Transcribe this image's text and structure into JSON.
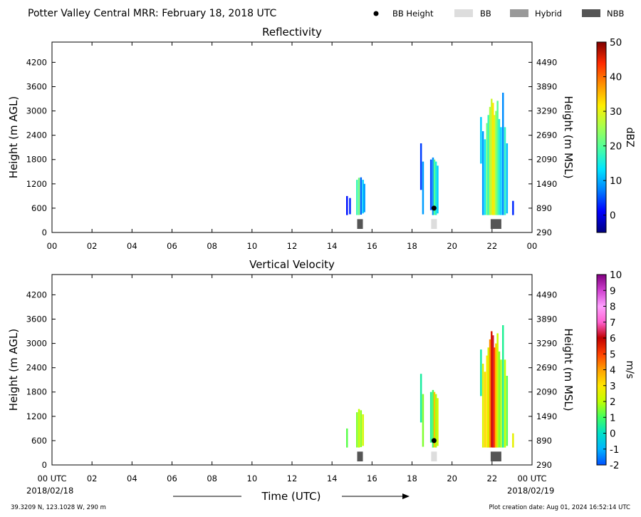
{
  "header": {
    "title": "Potter Valley Central MRR:  February 18, 2018 UTC",
    "legend": [
      {
        "label": "BB Height",
        "kind": "dot",
        "color": "#000000"
      },
      {
        "label": "BB",
        "kind": "rect",
        "color": "#dddddd"
      },
      {
        "label": "Hybrid",
        "kind": "rect",
        "color": "#999999"
      },
      {
        "label": "NBB",
        "kind": "rect",
        "color": "#555555"
      }
    ]
  },
  "footer": {
    "location": "39.3209 N, 123.1028 W, 290 m",
    "creation": "Plot creation date: Aug 01, 2024 16:52:14 UTC",
    "xlabel": "Time (UTC)",
    "start_date": "2018/02/18",
    "end_date": "2018/02/19"
  },
  "chart_data": [
    {
      "type": "heatmap",
      "title": "Reflectivity",
      "ylabel": "Height (m AGL)",
      "ylabel_right": "Height (m MSL)",
      "xlim": [
        0,
        24
      ],
      "ylim": [
        0,
        4700
      ],
      "x_ticks": [
        "00",
        "02",
        "04",
        "06",
        "08",
        "10",
        "12",
        "14",
        "16",
        "18",
        "20",
        "22",
        "00"
      ],
      "y_ticks": [
        0,
        600,
        1200,
        1800,
        2400,
        3000,
        3600,
        4200
      ],
      "y_ticks_right": [
        290,
        890,
        1490,
        2090,
        2690,
        3290,
        3890,
        4490
      ],
      "colorbar": {
        "label": "dBZ",
        "range": [
          -5,
          50
        ],
        "ticks": [
          0,
          10,
          20,
          30,
          40,
          50
        ],
        "colormap": [
          "#00007f",
          "#0000ff",
          "#0080ff",
          "#00e5ff",
          "#4dff9e",
          "#a8ff4d",
          "#ffee00",
          "#ff9100",
          "#ff2a00",
          "#7f0000"
        ]
      },
      "bb_height": [
        {
          "time": 19.1,
          "height": 600
        }
      ],
      "bb_type": [
        {
          "time": 15.4,
          "class": "NBB"
        },
        {
          "time": 19.1,
          "class": "BB"
        },
        {
          "time": 22.2,
          "class": "NBB"
        }
      ],
      "echoes": [
        {
          "t": 14.75,
          "h0": 430,
          "h1": 900,
          "v": 2
        },
        {
          "t": 14.9,
          "h0": 450,
          "h1": 850,
          "v": 3
        },
        {
          "t": 15.25,
          "h0": 430,
          "h1": 1300,
          "v": 18
        },
        {
          "t": 15.35,
          "h0": 430,
          "h1": 1350,
          "v": 22
        },
        {
          "t": 15.45,
          "h0": 440,
          "h1": 1360,
          "v": 6
        },
        {
          "t": 15.55,
          "h0": 470,
          "h1": 1300,
          "v": 12
        },
        {
          "t": 15.62,
          "h0": 500,
          "h1": 1200,
          "v": 9
        },
        {
          "t": 18.45,
          "h0": 1050,
          "h1": 2200,
          "v": 4
        },
        {
          "t": 18.55,
          "h0": 450,
          "h1": 1750,
          "v": 9
        },
        {
          "t": 18.95,
          "h0": 550,
          "h1": 1800,
          "v": 5
        },
        {
          "t": 19.05,
          "h0": 430,
          "h1": 1850,
          "v": 8
        },
        {
          "t": 19.12,
          "h0": 430,
          "h1": 1800,
          "v": 20
        },
        {
          "t": 19.2,
          "h0": 430,
          "h1": 1750,
          "v": 16
        },
        {
          "t": 19.28,
          "h0": 470,
          "h1": 1650,
          "v": 12
        },
        {
          "t": 21.45,
          "h0": 1700,
          "h1": 2850,
          "v": 12
        },
        {
          "t": 21.55,
          "h0": 430,
          "h1": 2500,
          "v": 9
        },
        {
          "t": 21.65,
          "h0": 430,
          "h1": 2300,
          "v": 14
        },
        {
          "t": 21.75,
          "h0": 430,
          "h1": 2700,
          "v": 22
        },
        {
          "t": 21.82,
          "h0": 430,
          "h1": 2900,
          "v": 18
        },
        {
          "t": 21.9,
          "h0": 430,
          "h1": 3100,
          "v": 26
        },
        {
          "t": 21.98,
          "h0": 430,
          "h1": 3300,
          "v": 28
        },
        {
          "t": 22.05,
          "h0": 430,
          "h1": 3200,
          "v": 32
        },
        {
          "t": 22.12,
          "h0": 430,
          "h1": 2900,
          "v": 30
        },
        {
          "t": 22.2,
          "h0": 430,
          "h1": 3000,
          "v": 24
        },
        {
          "t": 22.28,
          "h0": 430,
          "h1": 3250,
          "v": 20
        },
        {
          "t": 22.36,
          "h0": 430,
          "h1": 2800,
          "v": 16
        },
        {
          "t": 22.45,
          "h0": 430,
          "h1": 2600,
          "v": 12
        },
        {
          "t": 22.55,
          "h0": 430,
          "h1": 3450,
          "v": 8
        },
        {
          "t": 22.65,
          "h0": 430,
          "h1": 2600,
          "v": 17
        },
        {
          "t": 22.75,
          "h0": 470,
          "h1": 2200,
          "v": 11
        },
        {
          "t": 23.05,
          "h0": 430,
          "h1": 780,
          "v": 3
        }
      ]
    },
    {
      "type": "heatmap",
      "title": "Vertical Velocity",
      "ylabel": "Height (m AGL)",
      "ylabel_right": "Height (m MSL)",
      "xlim": [
        0,
        24
      ],
      "ylim": [
        0,
        4700
      ],
      "x_ticks": [
        "00 UTC",
        "02",
        "04",
        "06",
        "08",
        "10",
        "12",
        "14",
        "16",
        "18",
        "20",
        "22",
        "00 UTC"
      ],
      "y_ticks": [
        0,
        600,
        1200,
        1800,
        2400,
        3000,
        3600,
        4200
      ],
      "y_ticks_right": [
        290,
        890,
        1490,
        2090,
        2690,
        3290,
        3890,
        4490
      ],
      "colorbar": {
        "label": "m/s",
        "range": [
          -2,
          10
        ],
        "ticks": [
          -2,
          -1,
          0,
          1,
          2,
          3,
          4,
          5,
          6,
          7,
          8,
          9,
          10
        ],
        "colormap": [
          "#0050ff",
          "#00b4ff",
          "#00e0c8",
          "#40ff60",
          "#c0ff00",
          "#ffe600",
          "#ffa000",
          "#ff4000",
          "#c00000",
          "#ff60d0",
          "#ffa0ff",
          "#d040d0",
          "#800080"
        ]
      },
      "bb_height": [
        {
          "time": 19.1,
          "height": 600
        }
      ],
      "bb_type": [
        {
          "time": 15.4,
          "class": "NBB"
        },
        {
          "time": 19.1,
          "class": "BB"
        },
        {
          "time": 22.2,
          "class": "NBB"
        }
      ],
      "echoes": [
        {
          "t": 14.75,
          "h0": 430,
          "h1": 900,
          "v": 1.2
        },
        {
          "t": 15.25,
          "h0": 430,
          "h1": 1300,
          "v": 1.5
        },
        {
          "t": 15.35,
          "h0": 430,
          "h1": 1380,
          "v": 2.0
        },
        {
          "t": 15.45,
          "h0": 440,
          "h1": 1350,
          "v": 1.6
        },
        {
          "t": 15.55,
          "h0": 470,
          "h1": 1250,
          "v": 2.3
        },
        {
          "t": 18.45,
          "h0": 1050,
          "h1": 2250,
          "v": 0.4
        },
        {
          "t": 18.55,
          "h0": 450,
          "h1": 1750,
          "v": 1.5
        },
        {
          "t": 18.95,
          "h0": 550,
          "h1": 1800,
          "v": 0.6
        },
        {
          "t": 19.05,
          "h0": 430,
          "h1": 1850,
          "v": 1.0
        },
        {
          "t": 19.12,
          "h0": 430,
          "h1": 1800,
          "v": 3.5
        },
        {
          "t": 19.2,
          "h0": 430,
          "h1": 1750,
          "v": 1.8
        },
        {
          "t": 19.28,
          "h0": 470,
          "h1": 1650,
          "v": 2.2
        },
        {
          "t": 21.45,
          "h0": 1700,
          "h1": 2850,
          "v": 0.3
        },
        {
          "t": 21.55,
          "h0": 430,
          "h1": 2500,
          "v": 2.5
        },
        {
          "t": 21.65,
          "h0": 430,
          "h1": 2300,
          "v": 3.2
        },
        {
          "t": 21.75,
          "h0": 430,
          "h1": 2700,
          "v": 3.0
        },
        {
          "t": 21.82,
          "h0": 430,
          "h1": 2900,
          "v": 2.4
        },
        {
          "t": 21.9,
          "h0": 430,
          "h1": 3100,
          "v": 4.2
        },
        {
          "t": 21.98,
          "h0": 430,
          "h1": 3300,
          "v": 5.6
        },
        {
          "t": 22.05,
          "h0": 430,
          "h1": 3200,
          "v": 6.2
        },
        {
          "t": 22.12,
          "h0": 430,
          "h1": 2900,
          "v": 5.0
        },
        {
          "t": 22.2,
          "h0": 430,
          "h1": 3000,
          "v": 3.5
        },
        {
          "t": 22.28,
          "h0": 430,
          "h1": 3250,
          "v": 2.2
        },
        {
          "t": 22.36,
          "h0": 430,
          "h1": 2800,
          "v": 1.5
        },
        {
          "t": 22.45,
          "h0": 430,
          "h1": 2600,
          "v": 1.8
        },
        {
          "t": 22.55,
          "h0": 430,
          "h1": 3450,
          "v": 0.5
        },
        {
          "t": 22.65,
          "h0": 430,
          "h1": 2600,
          "v": 2.0
        },
        {
          "t": 22.75,
          "h0": 470,
          "h1": 2200,
          "v": 1.2
        },
        {
          "t": 23.05,
          "h0": 430,
          "h1": 780,
          "v": 2.6
        }
      ]
    }
  ]
}
